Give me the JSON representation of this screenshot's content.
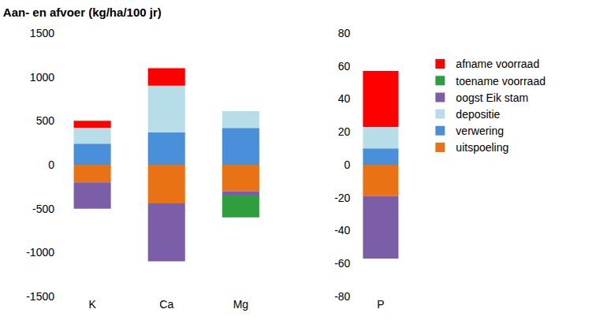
{
  "chart_data": [
    {
      "type": "bar",
      "title": "Aan- en afvoer (kg/ha/100 jr)",
      "stacked": true,
      "grid": false,
      "legend": "right",
      "categories": [
        "K",
        "Ca",
        "Mg"
      ],
      "ylim": [
        -1500,
        1500
      ],
      "yticks": [
        -1500,
        -1000,
        -500,
        0,
        500,
        1000,
        1500
      ],
      "series": [
        {
          "name": "afname voorraad",
          "color": "#ff0000",
          "values": [
            80,
            200,
            0
          ]
        },
        {
          "name": "toename voorraad",
          "color": "#2e9e3e",
          "values": [
            0,
            0,
            -250
          ]
        },
        {
          "name": "oogst Eik stam",
          "color": "#7b5ea7",
          "values": [
            -300,
            -660,
            -50
          ]
        },
        {
          "name": "depositie",
          "color": "#b7dee8",
          "values": [
            180,
            530,
            190
          ]
        },
        {
          "name": "verwering",
          "color": "#4a8fd9",
          "values": [
            240,
            370,
            420
          ]
        },
        {
          "name": "uitspoeling",
          "color": "#e97314",
          "values": [
            -200,
            -440,
            -300
          ]
        }
      ]
    },
    {
      "type": "bar",
      "stacked": true,
      "grid": false,
      "categories": [
        "P"
      ],
      "ylim": [
        -80,
        80
      ],
      "yticks": [
        -80,
        -60,
        -40,
        -20,
        0,
        20,
        40,
        60,
        80
      ],
      "series": [
        {
          "name": "afname voorraad",
          "color": "#ff0000",
          "values": [
            34
          ]
        },
        {
          "name": "toename voorraad",
          "color": "#2e9e3e",
          "values": [
            0
          ]
        },
        {
          "name": "oogst Eik stam",
          "color": "#7b5ea7",
          "values": [
            -38
          ]
        },
        {
          "name": "depositie",
          "color": "#b7dee8",
          "values": [
            13
          ]
        },
        {
          "name": "verwering",
          "color": "#4a8fd9",
          "values": [
            10
          ]
        },
        {
          "name": "uitspoeling",
          "color": "#e97314",
          "values": [
            -19
          ]
        }
      ]
    }
  ]
}
